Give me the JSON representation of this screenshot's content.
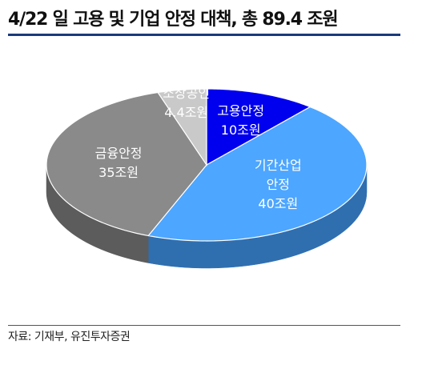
{
  "title": "4/22 일 고용 및 기업 안정 대책, 총 89.4 조원",
  "source": "자료: 기재부, 유진투자증권",
  "chart_data": {
    "type": "pie",
    "title": "4/22 일 고용 및 기업 안정 대책, 총 89.4 조원",
    "unit": "조원",
    "slices": [
      {
        "name": "고용안정",
        "value": 10,
        "value_label": "10조원",
        "label_lines": [
          "고용안정",
          "10조원"
        ],
        "color": "#0000ee",
        "side_color": "#00008a",
        "label_color": "#ffffff"
      },
      {
        "name": "기간산업 안정",
        "value": 40,
        "value_label": "40조원",
        "label_lines": [
          "기간산업",
          "안정",
          "40조원"
        ],
        "color": "#4da6ff",
        "side_color": "#2f6fb0",
        "label_color": "#ffffff"
      },
      {
        "name": "금융안정",
        "value": 35,
        "value_label": "35조원",
        "label_lines": [
          "금융안정",
          "35조원"
        ],
        "color": "#8a8a8a",
        "side_color": "#5c5c5c",
        "label_color": "#ffffff"
      },
      {
        "name": "소상공인",
        "value": 4.4,
        "value_label": "4.4조원",
        "label_lines": [
          "소상공인",
          "4.4조원"
        ],
        "color": "#c9c9c9",
        "side_color": "#8f8f8f",
        "label_color": "#ffffff"
      }
    ]
  }
}
